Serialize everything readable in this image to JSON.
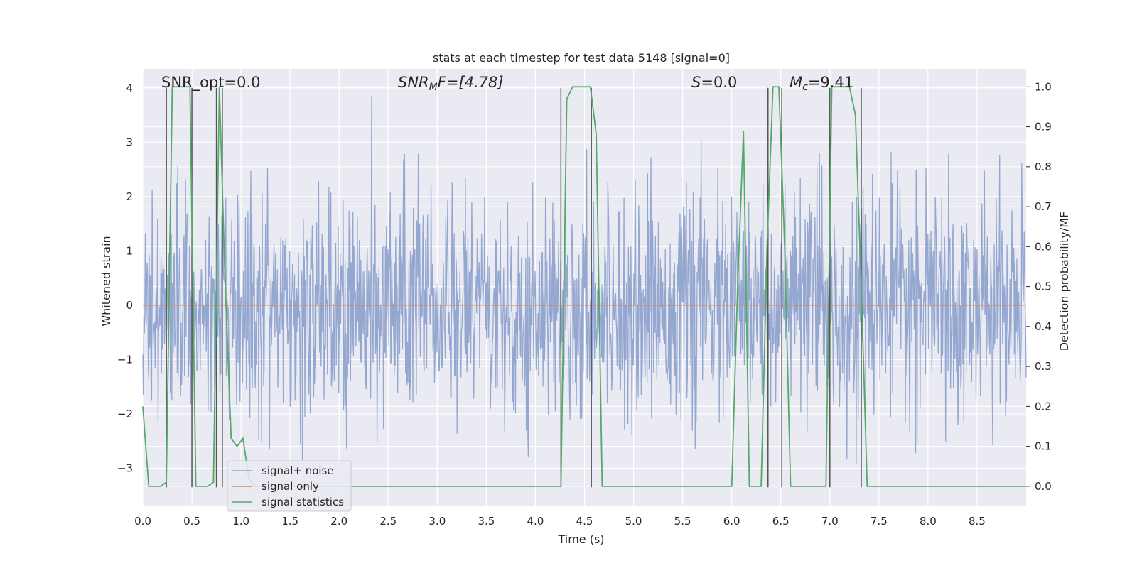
{
  "chart_data": {
    "type": "line",
    "title": "stats at each timestep for test data 5148 [signal=0]",
    "xlabel": "Time (s)",
    "ylabel": "Whitened strain",
    "y2label": "Detection probability/MF",
    "xlim": [
      0.0,
      9.0
    ],
    "ylim": [
      -3.7,
      4.35
    ],
    "y2lim": [
      -0.05,
      1.045
    ],
    "xticks": [
      0.0,
      0.5,
      1.0,
      1.5,
      2.0,
      2.5,
      3.0,
      3.5,
      4.0,
      4.5,
      5.0,
      5.5,
      6.0,
      6.5,
      7.0,
      7.5,
      8.0,
      8.5
    ],
    "xtick_labels": [
      "0.0",
      "0.5",
      "1.0",
      "1.5",
      "2.0",
      "2.5",
      "3.0",
      "3.5",
      "4.0",
      "4.5",
      "5.0",
      "5.5",
      "6.0",
      "6.5",
      "7.0",
      "7.5",
      "8.0",
      "8.5"
    ],
    "yticks": [
      -3,
      -2,
      -1,
      0,
      1,
      2,
      3,
      4
    ],
    "ytick_labels": [
      "−3",
      "−2",
      "−1",
      "0",
      "1",
      "2",
      "3",
      "4"
    ],
    "y2ticks": [
      0.0,
      0.1,
      0.2,
      0.3,
      0.4,
      0.5,
      0.6,
      0.7,
      0.8,
      0.9,
      1.0
    ],
    "y2tick_labels": [
      "0.0",
      "0.1",
      "0.2",
      "0.3",
      "0.4",
      "0.5",
      "0.6",
      "0.7",
      "0.8",
      "0.9",
      "1.0"
    ],
    "annotations": [
      {
        "id": "snr-opt",
        "text": "SNR_opt=0.0"
      },
      {
        "id": "snr-mf",
        "parts": [
          "SNR",
          "M",
          "F=[4.78]"
        ]
      },
      {
        "id": "s",
        "parts": [
          "S",
          "=0.0"
        ]
      },
      {
        "id": "mc",
        "parts": [
          "M",
          "c",
          "=9.41"
        ]
      }
    ],
    "legend": {
      "placement": "lower-left",
      "entries": [
        {
          "label": "signal+ noise",
          "color": "#8fa3cd"
        },
        {
          "label": "signal only",
          "color": "#dd8452"
        },
        {
          "label": "signal statistics",
          "color": "#55a868"
        }
      ]
    },
    "series": [
      {
        "name": "signal+ noise",
        "axis": "left",
        "color": "#8fa3cd",
        "description": "whitened noise, approx. Gaussian, sd 1.0, visible range about -3.4 to 4.0",
        "noise_sd": 1.0,
        "n_samples": 1800
      },
      {
        "name": "signal only",
        "axis": "left",
        "color": "#dd8452",
        "x": [
          0.0,
          9.0
        ],
        "y": [
          0.0,
          0.0
        ]
      },
      {
        "name": "signal statistics",
        "axis": "right",
        "color": "#55a868",
        "x": [
          0.0,
          0.06,
          0.12,
          0.18,
          0.24,
          0.3,
          0.36,
          0.42,
          0.48,
          0.54,
          0.6,
          0.66,
          0.72,
          0.78,
          0.84,
          0.9,
          0.96,
          1.02,
          1.08,
          1.14,
          1.2,
          4.2,
          4.26,
          4.32,
          4.38,
          4.5,
          4.56,
          4.62,
          4.68,
          4.74,
          5.94,
          6.0,
          6.06,
          6.12,
          6.18,
          6.24,
          6.3,
          6.36,
          6.42,
          6.48,
          6.54,
          6.6,
          6.66,
          6.9,
          6.96,
          7.02,
          7.08,
          7.2,
          7.26,
          7.32,
          7.38,
          7.44,
          7.5,
          9.0
        ],
        "y": [
          0.2,
          0.0,
          0.0,
          0.0,
          0.01,
          1.0,
          1.0,
          1.0,
          1.0,
          0.0,
          0.0,
          0.0,
          0.01,
          1.0,
          0.5,
          0.12,
          0.1,
          0.12,
          0.02,
          0.0,
          0.0,
          0.0,
          0.0,
          0.97,
          1.0,
          1.0,
          1.0,
          0.88,
          0.0,
          0.0,
          0.0,
          0.0,
          0.5,
          0.89,
          0.0,
          0.0,
          0.0,
          0.6,
          1.0,
          1.0,
          0.6,
          0.0,
          0.0,
          0.0,
          0.0,
          1.0,
          1.0,
          1.0,
          0.93,
          0.5,
          0.0,
          0.0,
          0.0,
          0.0
        ]
      }
    ],
    "detection_markers": {
      "color": "#555555",
      "x": [
        0.24,
        0.5,
        0.75,
        0.81,
        4.26,
        4.57,
        6.37,
        6.51,
        7.0,
        7.32
      ],
      "y_range": [
        -3.35,
        4.0
      ]
    }
  }
}
